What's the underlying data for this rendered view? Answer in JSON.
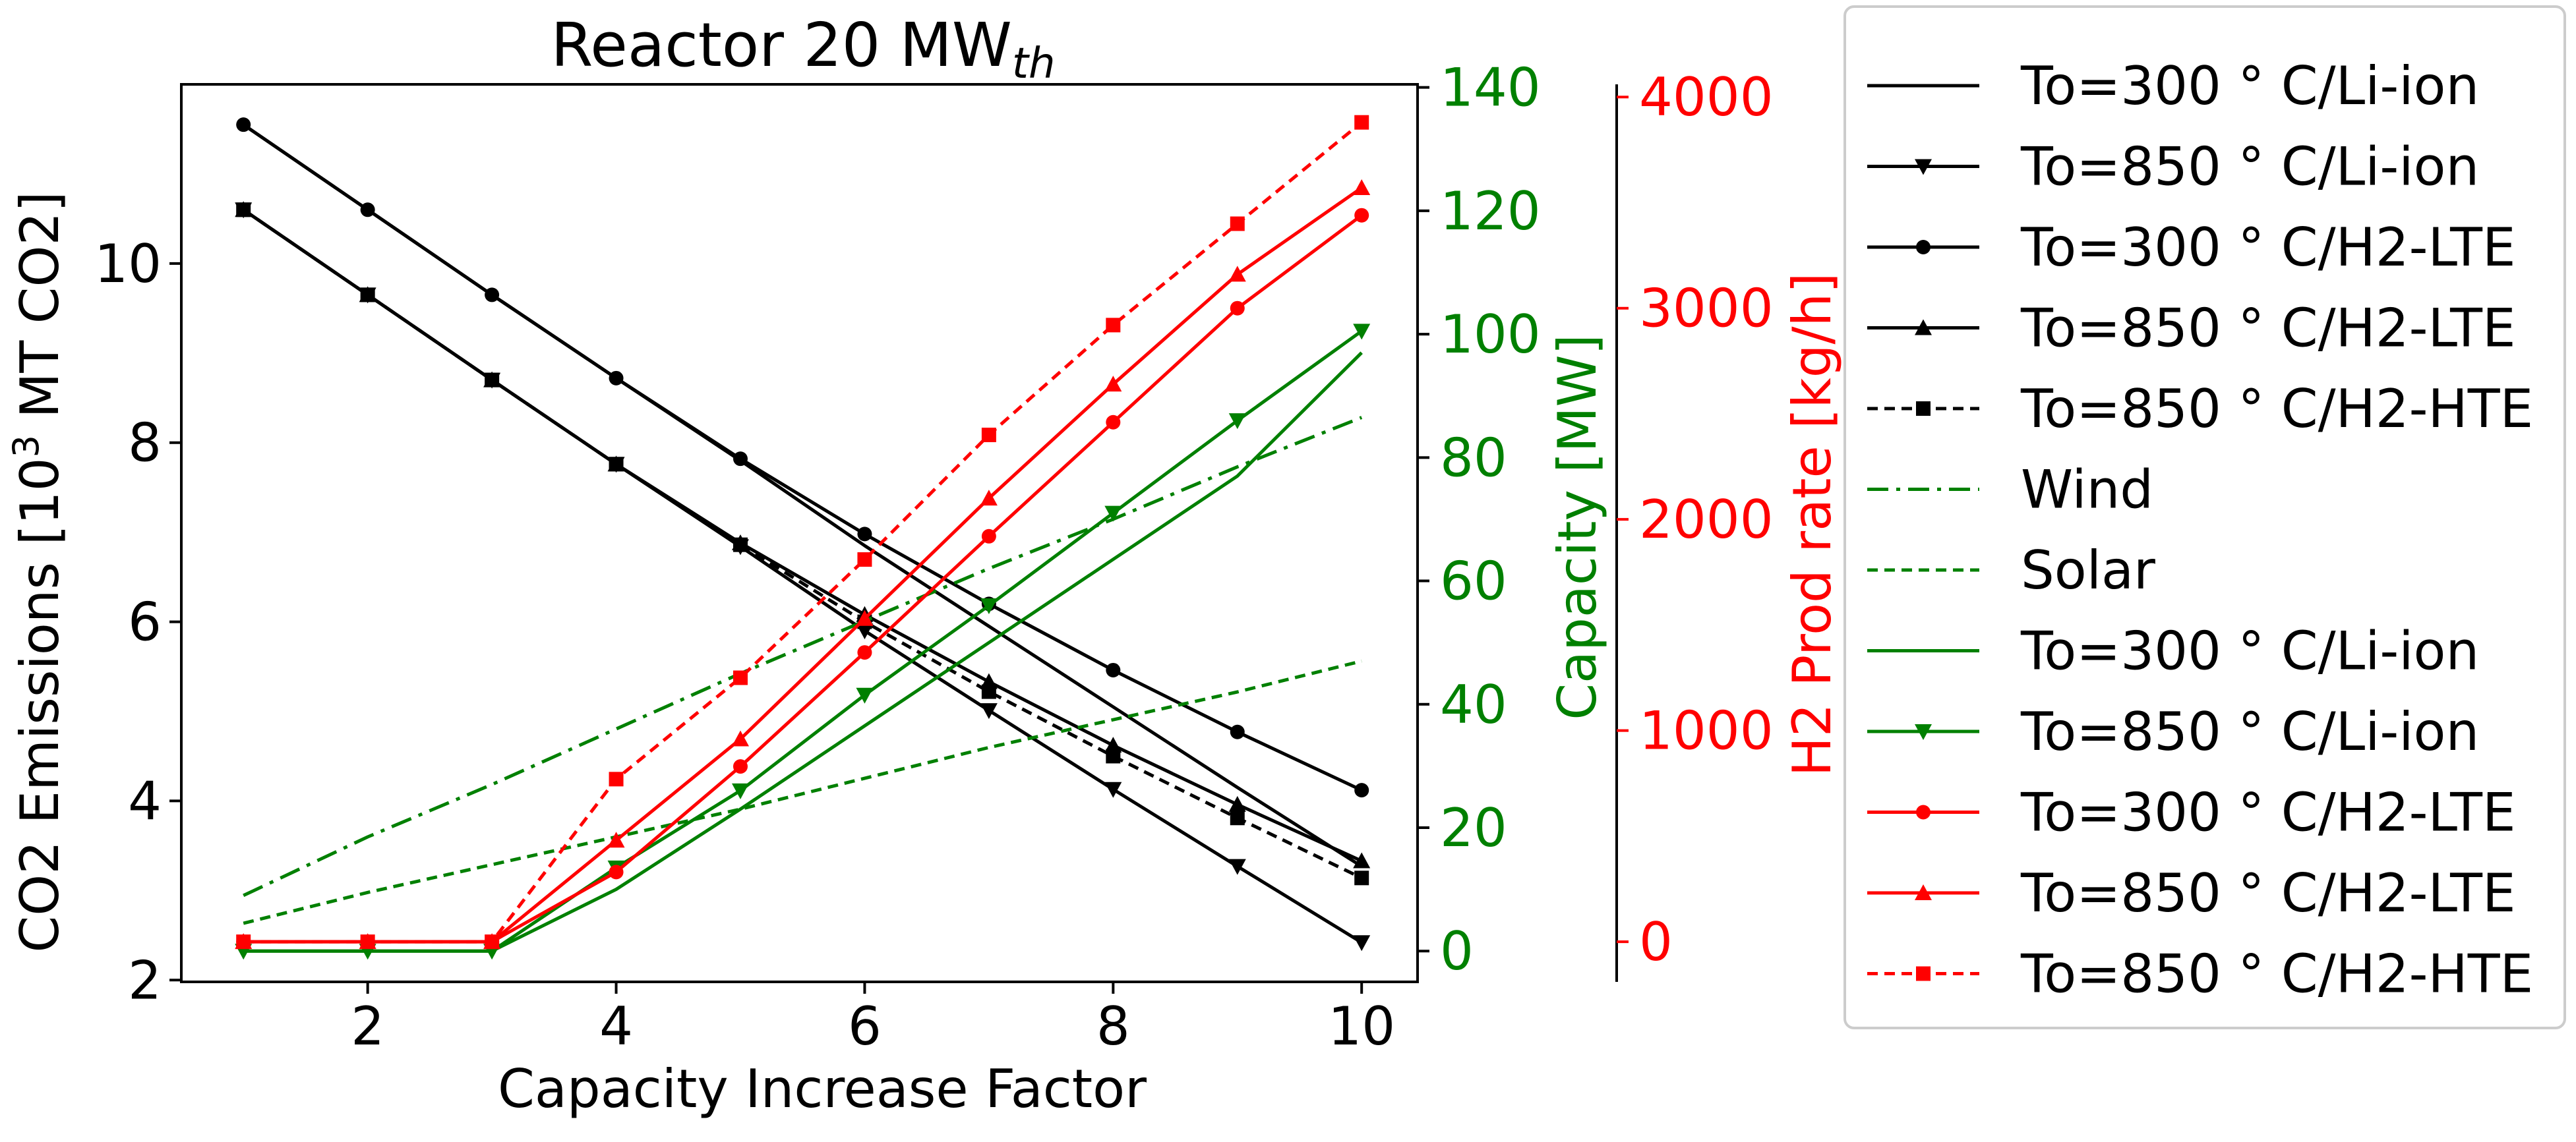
{
  "chart_data": {
    "type": "line",
    "title": {
      "main": "Reactor 20 MW",
      "sub": "th"
    },
    "xlabel": "Capacity Increase Factor",
    "x": [
      1,
      2,
      3,
      4,
      5,
      6,
      7,
      8,
      9,
      10
    ],
    "xticks": [
      "2",
      "4",
      "6",
      "8",
      "10"
    ],
    "xtick_values": [
      2,
      4,
      6,
      8,
      10
    ],
    "xlim": [
      0.5,
      10.45
    ],
    "axes": {
      "left": {
        "label": {
          "pre": "CO2 Emissions [10",
          "sup": "3",
          "post": " MT CO2]"
        },
        "ylim": [
          1.98,
          12.0
        ],
        "ticks": [
          2,
          4,
          6,
          8,
          10
        ],
        "ticklabels": [
          "2",
          "4",
          "6",
          "8",
          "10"
        ],
        "color": "#000000"
      },
      "capacity": {
        "label": "Capacity [MW]",
        "ylim": [
          -5,
          140.5
        ],
        "ticks": [
          0,
          20,
          40,
          60,
          80,
          100,
          120,
          140
        ],
        "ticklabels": [
          "0",
          "20",
          "40",
          "60",
          "80",
          "100",
          "120",
          "140"
        ],
        "color": "#008000"
      },
      "h2": {
        "label": "H2 Prod rate [kg/h]",
        "ylim": [
          -190,
          4060
        ],
        "ticks": [
          0,
          1000,
          2000,
          3000,
          4000
        ],
        "ticklabels": [
          "0",
          "1000",
          "2000",
          "3000",
          "4000"
        ],
        "color": "#ff0000"
      }
    },
    "series": [
      {
        "name": "To=300$^\\circ$C/Li-ion",
        "display": "To=300 ° C/Li-ion",
        "axis": "left",
        "color": "#000000",
        "dash": "",
        "marker": "none",
        "values": [
          11.55,
          10.6,
          9.65,
          8.72,
          7.8,
          6.85,
          5.95,
          5.05,
          4.15,
          3.27
        ]
      },
      {
        "name": "To=850$^\\circ$C/Li-ion",
        "display": "To=850 ° C/Li-ion",
        "axis": "left",
        "color": "#000000",
        "dash": "",
        "marker": "tri-down",
        "values": [
          10.6,
          9.65,
          8.7,
          7.76,
          6.84,
          5.9,
          5.01,
          4.13,
          3.27,
          2.42
        ]
      },
      {
        "name": "To=300$^\\circ$C/H2-LTE",
        "display": "To=300 ° C/H2-LTE",
        "axis": "left",
        "color": "#000000",
        "dash": "",
        "marker": "circle",
        "values": [
          11.55,
          10.6,
          9.65,
          8.72,
          7.82,
          6.98,
          6.2,
          5.46,
          4.77,
          4.12
        ]
      },
      {
        "name": "To=850$^\\circ$C/H2-LTE",
        "display": "To=850 ° C/H2-LTE",
        "axis": "left",
        "color": "#000000",
        "dash": "",
        "marker": "tri-up",
        "values": [
          10.6,
          9.65,
          8.7,
          7.76,
          6.88,
          6.08,
          5.33,
          4.62,
          3.96,
          3.33
        ]
      },
      {
        "name": "To=850$^\\circ$C/H2-HTE",
        "display": "To=850 ° C/H2-HTE",
        "axis": "left",
        "color": "#000000",
        "dash": "16,10",
        "marker": "square",
        "values": [
          10.6,
          9.65,
          8.7,
          7.76,
          6.86,
          6.0,
          5.22,
          4.5,
          3.81,
          3.14
        ]
      },
      {
        "name": "Wind",
        "display": "Wind",
        "axis": "capacity",
        "color": "#008000",
        "dash": "32,12,6,12",
        "marker": "none",
        "values": [
          9,
          18.5,
          27,
          36,
          45,
          53.5,
          62,
          70,
          78.5,
          86.5
        ]
      },
      {
        "name": "Solar",
        "display": "Solar",
        "axis": "capacity",
        "color": "#008000",
        "dash": "16,10",
        "marker": "none",
        "values": [
          4.5,
          9.5,
          14,
          18.5,
          23,
          28,
          33,
          37.5,
          42,
          47
        ]
      },
      {
        "name": "To=300$^\\circ$C/Li-ion",
        "display": "To=300 ° C/Li-ion",
        "axis": "capacity",
        "color": "#008000",
        "dash": "",
        "marker": "none",
        "values": [
          0,
          0,
          0,
          10,
          23,
          36.5,
          50,
          63.5,
          77,
          97
        ]
      },
      {
        "name": "To=850$^\\circ$C/Li-ion",
        "display": "To=850 ° C/Li-ion",
        "axis": "capacity",
        "color": "#008000",
        "dash": "",
        "marker": "tri-down",
        "values": [
          0,
          0,
          0,
          13.5,
          26,
          41.5,
          56,
          71,
          86,
          100.5
        ]
      },
      {
        "name": "To=300$^\\circ$C/H2-LTE",
        "display": "To=300 ° C/H2-LTE",
        "axis": "h2",
        "color": "#ff0000",
        "dash": "",
        "marker": "circle",
        "values": [
          0,
          0,
          0,
          330,
          830,
          1370,
          1920,
          2460,
          3000,
          3440
        ]
      },
      {
        "name": "To=850$^\\circ$C/H2-LTE",
        "display": "To=850 ° C/H2-LTE",
        "axis": "h2",
        "color": "#ff0000",
        "dash": "",
        "marker": "tri-up",
        "values": [
          0,
          0,
          0,
          480,
          960,
          1530,
          2100,
          2640,
          3160,
          3570
        ]
      },
      {
        "name": "To=850$^\\circ$C/H2-HTE",
        "display": "To=850 ° C/H2-HTE",
        "axis": "h2",
        "color": "#ff0000",
        "dash": "16,10",
        "marker": "square",
        "values": [
          0,
          0,
          0,
          770,
          1250,
          1810,
          2400,
          2920,
          3400,
          3880
        ]
      }
    ],
    "legend": {
      "position": "right-outside"
    },
    "grid": false
  }
}
